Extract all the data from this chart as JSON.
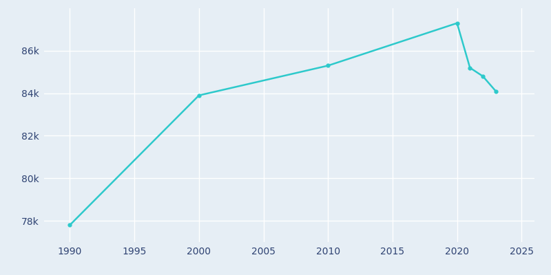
{
  "years": [
    1990,
    2000,
    2010,
    2020,
    2021,
    2022,
    2023
  ],
  "population": [
    77800,
    83900,
    85300,
    87300,
    85200,
    84800,
    84100
  ],
  "line_color": "#2dc9cb",
  "marker_color": "#2dc9cb",
  "background_color": "#e6eef5",
  "grid_color": "#ffffff",
  "text_color": "#2e4272",
  "xlim": [
    1988,
    2026
  ],
  "ylim": [
    77000,
    88000
  ],
  "xticks": [
    1990,
    1995,
    2000,
    2005,
    2010,
    2015,
    2020,
    2025
  ],
  "yticks": [
    78000,
    80000,
    82000,
    84000,
    86000
  ],
  "ytick_labels": [
    "78k",
    "80k",
    "82k",
    "84k",
    "86k"
  ]
}
